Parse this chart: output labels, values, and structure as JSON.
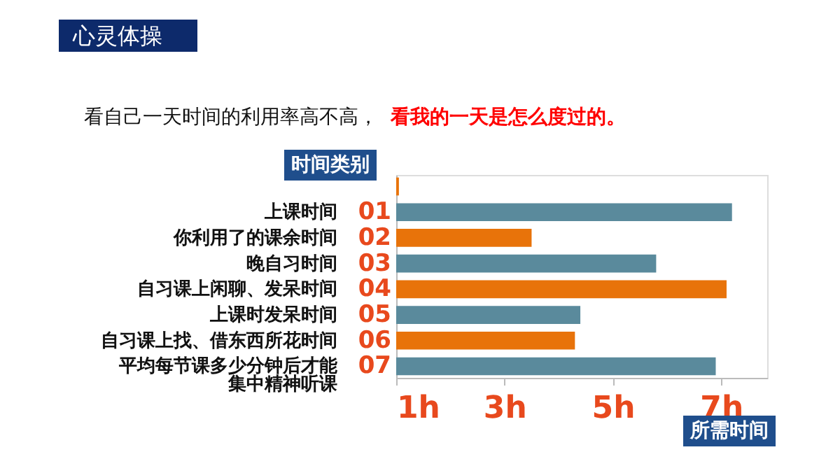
{
  "chart_data": {
    "type": "bar",
    "orientation": "horizontal",
    "title": "心灵体操",
    "categories": [
      null,
      "01",
      "02",
      "03",
      "04",
      "05",
      "06",
      "07"
    ],
    "values": [
      0.05,
      6.2,
      2.5,
      4.8,
      6.1,
      3.4,
      3.3,
      5.9
    ],
    "colors": [
      "#e8730a",
      "#5a8a9c",
      "#e8730a",
      "#5a8a9c",
      "#e8730a",
      "#5a8a9c",
      "#e8730a",
      "#5a8a9c"
    ],
    "base": [
      1,
      1,
      1,
      1,
      1,
      1,
      1,
      1
    ],
    "xlim": [
      1,
      7.85
    ],
    "xticks": [
      {
        "value": 1,
        "label": "1h"
      },
      {
        "value": 3,
        "label": "3h"
      },
      {
        "value": 5,
        "label": "5h"
      },
      {
        "value": 7,
        "label": "7h"
      }
    ],
    "xlabel": "所需时间",
    "ylabel": "时间类别",
    "annotations": [
      "看自己一天时间的利用率高不高，",
      "看我的一天是怎么度过的。",
      "上课时间",
      "你利用了的课余时间",
      "晚自习时间",
      "自习课上闲聊、发呆时间",
      "上课时发呆时间",
      "自习课上找、借东西所花时间",
      "平均每节课多少分钟后才能集中精神听课"
    ],
    "grid": false,
    "legend": false
  }
}
